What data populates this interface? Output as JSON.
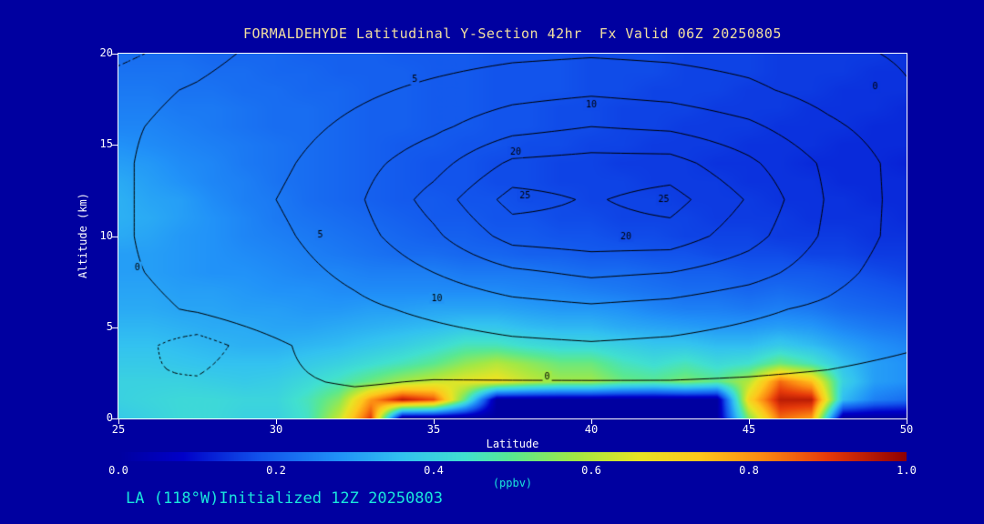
{
  "window": {
    "bg": "#0000A0"
  },
  "title": {
    "text": "FORMALDEHYDE Latitudinal Y-Section 42hr  Fx Valid 06Z 20250805",
    "color": "#F2DFA0"
  },
  "footer": {
    "text": "LA (118°W)Initialized 12Z 20250803",
    "color": "#19E6DC"
  },
  "axes": {
    "x": {
      "label": "Latitude",
      "ticks": [
        "25",
        "30",
        "35",
        "40",
        "45",
        "50"
      ],
      "range": [
        25,
        50
      ]
    },
    "y": {
      "label": "Altitude (km)",
      "ticks": [
        "0",
        "5",
        "10",
        "15",
        "20"
      ],
      "range": [
        0,
        20
      ]
    },
    "frame_color": "#FFFFFF"
  },
  "colorbar": {
    "labels": [
      "0.0",
      "0.2",
      "0.4",
      "0.6",
      "0.8",
      "1.0"
    ],
    "units": "(ppbv)",
    "min": 0,
    "max": 1
  },
  "chart_data": {
    "type": "heatmap",
    "subtype": "filled-contour-cross-section",
    "title": "FORMALDEHYDE Latitudinal Y-Section 42hr  Fx Valid 06Z 20250805",
    "xlabel": "Latitude",
    "ylabel": "Altitude (km)",
    "fill_units": "ppbv",
    "fill_range": [
      0,
      1
    ],
    "x_lat": [
      25,
      26,
      27,
      28,
      29,
      30,
      31,
      32,
      33,
      34,
      35,
      36,
      37,
      38,
      39,
      40,
      41,
      42,
      43,
      44,
      45,
      46,
      47,
      48,
      49,
      50
    ],
    "y_alt_km": [
      0,
      1,
      2,
      3,
      4,
      5,
      6,
      7,
      8,
      9,
      10,
      11,
      12,
      13,
      14,
      15,
      16,
      17,
      18,
      19,
      20
    ],
    "fill_values_ppbv": [
      [
        0.38,
        0.4,
        0.42,
        0.42,
        0.4,
        0.4,
        0.45,
        0.62,
        0.9,
        0,
        0,
        0,
        0,
        0,
        0,
        0,
        0,
        0,
        0,
        0,
        0.55,
        0.85,
        0.8,
        0,
        0,
        0
      ],
      [
        0.4,
        0.41,
        0.42,
        0.42,
        0.41,
        0.41,
        0.46,
        0.55,
        0.8,
        0.95,
        0.88,
        0.5,
        0,
        0,
        0,
        0,
        0,
        0,
        0,
        0,
        0.7,
        0.95,
        0.95,
        0.35,
        0.25,
        0.22
      ],
      [
        0.4,
        0.4,
        0.4,
        0.39,
        0.38,
        0.39,
        0.42,
        0.46,
        0.52,
        0.58,
        0.62,
        0.66,
        0.68,
        0.62,
        0.58,
        0.58,
        0.52,
        0.5,
        0.54,
        0.5,
        0.6,
        0.85,
        0.75,
        0.4,
        0.3,
        0.28
      ],
      [
        0.38,
        0.38,
        0.37,
        0.36,
        0.36,
        0.36,
        0.38,
        0.4,
        0.43,
        0.46,
        0.5,
        0.56,
        0.6,
        0.56,
        0.52,
        0.52,
        0.46,
        0.43,
        0.46,
        0.42,
        0.44,
        0.52,
        0.46,
        0.36,
        0.3,
        0.28
      ],
      [
        0.36,
        0.36,
        0.35,
        0.34,
        0.33,
        0.33,
        0.34,
        0.35,
        0.37,
        0.39,
        0.42,
        0.46,
        0.46,
        0.43,
        0.41,
        0.41,
        0.39,
        0.37,
        0.37,
        0.35,
        0.35,
        0.38,
        0.35,
        0.31,
        0.28,
        0.26
      ],
      [
        0.34,
        0.34,
        0.33,
        0.32,
        0.32,
        0.31,
        0.31,
        0.32,
        0.33,
        0.34,
        0.35,
        0.37,
        0.37,
        0.35,
        0.34,
        0.34,
        0.32,
        0.31,
        0.3,
        0.29,
        0.29,
        0.3,
        0.29,
        0.26,
        0.24,
        0.23
      ],
      [
        0.32,
        0.32,
        0.31,
        0.31,
        0.3,
        0.3,
        0.29,
        0.29,
        0.3,
        0.3,
        0.31,
        0.31,
        0.31,
        0.3,
        0.29,
        0.29,
        0.28,
        0.26,
        0.25,
        0.25,
        0.24,
        0.25,
        0.24,
        0.22,
        0.21,
        0.2
      ],
      [
        0.31,
        0.31,
        0.3,
        0.3,
        0.29,
        0.28,
        0.28,
        0.27,
        0.27,
        0.27,
        0.27,
        0.27,
        0.27,
        0.26,
        0.26,
        0.25,
        0.24,
        0.23,
        0.22,
        0.22,
        0.21,
        0.22,
        0.21,
        0.2,
        0.19,
        0.18
      ],
      [
        0.3,
        0.3,
        0.29,
        0.28,
        0.28,
        0.27,
        0.26,
        0.26,
        0.25,
        0.25,
        0.25,
        0.24,
        0.24,
        0.24,
        0.23,
        0.22,
        0.22,
        0.21,
        0.2,
        0.2,
        0.19,
        0.19,
        0.19,
        0.18,
        0.17,
        0.16
      ],
      [
        0.3,
        0.3,
        0.29,
        0.28,
        0.27,
        0.26,
        0.25,
        0.24,
        0.23,
        0.22,
        0.22,
        0.21,
        0.21,
        0.2,
        0.2,
        0.19,
        0.19,
        0.18,
        0.18,
        0.17,
        0.17,
        0.17,
        0.16,
        0.16,
        0.15,
        0.15
      ],
      [
        0.32,
        0.31,
        0.29,
        0.28,
        0.26,
        0.25,
        0.24,
        0.23,
        0.22,
        0.21,
        0.2,
        0.2,
        0.19,
        0.19,
        0.18,
        0.18,
        0.17,
        0.17,
        0.16,
        0.16,
        0.16,
        0.15,
        0.15,
        0.15,
        0.14,
        0.14
      ],
      [
        0.33,
        0.32,
        0.3,
        0.28,
        0.26,
        0.24,
        0.23,
        0.22,
        0.21,
        0.2,
        0.19,
        0.19,
        0.18,
        0.18,
        0.17,
        0.17,
        0.16,
        0.16,
        0.16,
        0.15,
        0.15,
        0.15,
        0.14,
        0.14,
        0.14,
        0.13
      ],
      [
        0.33,
        0.31,
        0.3,
        0.27,
        0.25,
        0.24,
        0.22,
        0.21,
        0.2,
        0.19,
        0.19,
        0.18,
        0.18,
        0.17,
        0.17,
        0.16,
        0.16,
        0.16,
        0.15,
        0.15,
        0.15,
        0.14,
        0.14,
        0.14,
        0.13,
        0.13
      ],
      [
        0.32,
        0.3,
        0.28,
        0.26,
        0.25,
        0.23,
        0.22,
        0.21,
        0.2,
        0.19,
        0.18,
        0.18,
        0.17,
        0.17,
        0.16,
        0.16,
        0.16,
        0.15,
        0.15,
        0.15,
        0.14,
        0.14,
        0.14,
        0.13,
        0.13,
        0.13
      ],
      [
        0.3,
        0.29,
        0.27,
        0.26,
        0.24,
        0.23,
        0.22,
        0.21,
        0.2,
        0.19,
        0.18,
        0.18,
        0.17,
        0.17,
        0.16,
        0.16,
        0.15,
        0.15,
        0.15,
        0.14,
        0.14,
        0.14,
        0.13,
        0.13,
        0.13,
        0.12
      ],
      [
        0.28,
        0.27,
        0.26,
        0.25,
        0.24,
        0.23,
        0.22,
        0.21,
        0.2,
        0.19,
        0.19,
        0.18,
        0.18,
        0.17,
        0.17,
        0.16,
        0.16,
        0.15,
        0.15,
        0.15,
        0.14,
        0.14,
        0.14,
        0.13,
        0.13,
        0.13
      ],
      [
        0.26,
        0.26,
        0.25,
        0.24,
        0.23,
        0.22,
        0.22,
        0.21,
        0.2,
        0.2,
        0.19,
        0.19,
        0.18,
        0.18,
        0.17,
        0.17,
        0.16,
        0.16,
        0.15,
        0.15,
        0.15,
        0.14,
        0.14,
        0.14,
        0.13,
        0.13
      ],
      [
        0.25,
        0.25,
        0.24,
        0.24,
        0.23,
        0.22,
        0.22,
        0.21,
        0.2,
        0.2,
        0.19,
        0.19,
        0.18,
        0.18,
        0.17,
        0.17,
        0.16,
        0.16,
        0.16,
        0.15,
        0.15,
        0.15,
        0.14,
        0.14,
        0.14,
        0.13
      ],
      [
        0.24,
        0.24,
        0.23,
        0.23,
        0.22,
        0.22,
        0.21,
        0.21,
        0.2,
        0.2,
        0.19,
        0.19,
        0.18,
        0.18,
        0.18,
        0.17,
        0.17,
        0.16,
        0.16,
        0.16,
        0.15,
        0.15,
        0.15,
        0.14,
        0.14,
        0.14
      ],
      [
        0.23,
        0.23,
        0.23,
        0.22,
        0.22,
        0.21,
        0.21,
        0.2,
        0.2,
        0.2,
        0.19,
        0.19,
        0.18,
        0.18,
        0.18,
        0.17,
        0.17,
        0.17,
        0.16,
        0.16,
        0.16,
        0.15,
        0.15,
        0.15,
        0.14,
        0.14
      ],
      [
        0.22,
        0.22,
        0.22,
        0.21,
        0.21,
        0.21,
        0.2,
        0.2,
        0.2,
        0.19,
        0.19,
        0.19,
        0.18,
        0.18,
        0.18,
        0.17,
        0.17,
        0.17,
        0.16,
        0.16,
        0.16,
        0.15,
        0.15,
        0.15,
        0.15,
        0.14
      ]
    ],
    "colormap_stops": [
      [
        0.0,
        "#0000A0"
      ],
      [
        0.08,
        "#0000C8"
      ],
      [
        0.18,
        "#1254EC"
      ],
      [
        0.28,
        "#2192F8"
      ],
      [
        0.36,
        "#33C2F0"
      ],
      [
        0.44,
        "#41E0D0"
      ],
      [
        0.5,
        "#5AE890"
      ],
      [
        0.58,
        "#A2E845"
      ],
      [
        0.66,
        "#E8E424"
      ],
      [
        0.74,
        "#FFC61C"
      ],
      [
        0.82,
        "#FC8812"
      ],
      [
        0.9,
        "#E63A0A"
      ],
      [
        1.0,
        "#8F0000"
      ]
    ],
    "overlay_contours": {
      "x_lat": [
        25,
        27.5,
        30,
        32.5,
        35,
        37.5,
        40,
        42.5,
        45,
        47.5,
        50
      ],
      "y_alt_km": [
        0,
        2,
        4,
        6,
        8,
        10,
        12,
        14,
        16,
        18,
        20
      ],
      "values": [
        [
          -2,
          -2,
          -2,
          -2,
          -2,
          -2,
          -2,
          -2,
          -2,
          -2,
          -2
        ],
        [
          -2,
          -1.8,
          -0.5,
          0.3,
          -0.2,
          -0.2,
          -0.2,
          -0.2,
          -0.5,
          -1,
          -2
        ],
        [
          -1,
          -3,
          -0.5,
          2,
          3,
          4,
          4.5,
          4,
          3,
          2,
          0.5
        ],
        [
          -1,
          0.3,
          2,
          4,
          6,
          8,
          9,
          8,
          6,
          4,
          1
        ],
        [
          -0.5,
          1,
          3,
          6,
          10,
          14,
          16,
          15,
          12,
          7,
          2
        ],
        [
          -0.5,
          2,
          4,
          8,
          14,
          22,
          23,
          23,
          17,
          9,
          3
        ],
        [
          -0.5,
          2,
          5,
          9,
          17,
          27,
          24.5,
          27,
          19.5,
          9.5,
          3
        ],
        [
          -0.5,
          2,
          4,
          8,
          13,
          21,
          22,
          22,
          16,
          9,
          3
        ],
        [
          -0.5,
          1,
          3,
          6,
          9,
          13,
          15,
          14,
          11,
          6,
          2
        ],
        [
          -1,
          0.3,
          2,
          4,
          6,
          8,
          9,
          8,
          6,
          3,
          0.3
        ],
        [
          -2.5,
          -1,
          1,
          2,
          3,
          4,
          4.5,
          4,
          3,
          1,
          -0.5
        ]
      ],
      "solid_levels": [
        0,
        5,
        10,
        15,
        20,
        25
      ],
      "dashed_levels": [
        -2
      ],
      "line_color": "#000000",
      "labels": [
        {
          "text": "0",
          "lat": 25.6,
          "alt": 8.3
        },
        {
          "text": "5",
          "lat": 31.4,
          "alt": 10.1
        },
        {
          "text": "5",
          "lat": 34.4,
          "alt": 18.6
        },
        {
          "text": "10",
          "lat": 40.0,
          "alt": 17.2
        },
        {
          "text": "10",
          "lat": 35.1,
          "alt": 6.6
        },
        {
          "text": "20",
          "lat": 37.6,
          "alt": 14.6
        },
        {
          "text": "20",
          "lat": 41.1,
          "alt": 10.0
        },
        {
          "text": "25",
          "lat": 37.9,
          "alt": 12.2
        },
        {
          "text": "25",
          "lat": 42.3,
          "alt": 12.0
        },
        {
          "text": "0",
          "lat": 38.6,
          "alt": 2.3
        },
        {
          "text": "0",
          "lat": 49.0,
          "alt": 18.2
        }
      ]
    }
  }
}
